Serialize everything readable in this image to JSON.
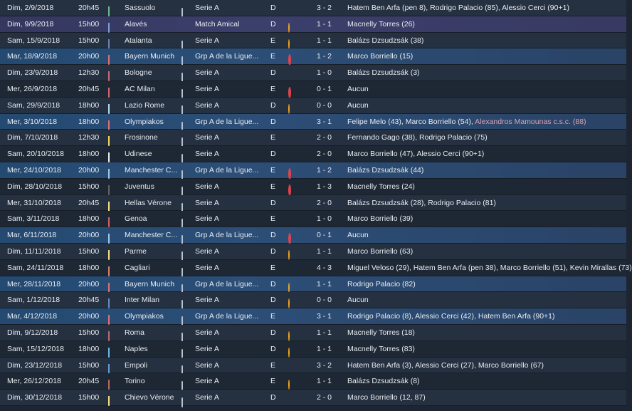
{
  "fixtures": [
    {
      "date": "Dim, 2/9/2018",
      "time": "20h45",
      "opponent": "Sassuolo",
      "crest_color": "#1d9a4d",
      "tv": true,
      "competition": "Serie A",
      "venue": "D",
      "result": "win",
      "score": "3 - 2",
      "scorers": "Hatem Ben Arfa (pen 8), Rodrigo Palacio (85), Alessio Cerci (90+1)",
      "scorers_extra": "",
      "style": "light"
    },
    {
      "date": "Dim, 9/9/2018",
      "time": "15h00",
      "opponent": "Alavés",
      "crest_color": "#2d6fbf",
      "tv": false,
      "competition": "Match Amical",
      "venue": "D",
      "result": "draw",
      "score": "1 - 1",
      "scorers": "Macnelly Torres (26)",
      "scorers_extra": "",
      "style": "amical"
    },
    {
      "date": "Sam, 15/9/2018",
      "time": "15h00",
      "opponent": "Atalanta",
      "crest_color": "#1f3f8a",
      "tv": true,
      "competition": "Serie A",
      "venue": "E",
      "result": "draw",
      "score": "1 - 1",
      "scorers": "Balázs Dzsudzsák (38)",
      "scorers_extra": "",
      "style": "light"
    },
    {
      "date": "Mar, 18/9/2018",
      "time": "20h00",
      "opponent": "Bayern Munich",
      "crest_color": "#d3212c",
      "tv": true,
      "competition": "Grp A de la Ligue...",
      "venue": "E",
      "result": "loss",
      "score": "1 - 2",
      "scorers": "Marco Borriello (15)",
      "scorers_extra": "",
      "style": "euro"
    },
    {
      "date": "Dim, 23/9/2018",
      "time": "12h30",
      "opponent": "Bologne",
      "crest_color": "#a8202c",
      "tv": true,
      "competition": "Serie A",
      "venue": "D",
      "result": "win",
      "score": "1 - 0",
      "scorers": "Balázs Dzsudzsák (3)",
      "scorers_extra": "",
      "style": "light"
    },
    {
      "date": "Mer, 26/9/2018",
      "time": "20h45",
      "opponent": "AC Milan",
      "crest_color": "#c4161c",
      "tv": true,
      "competition": "Serie A",
      "venue": "E",
      "result": "loss",
      "score": "0 - 1",
      "scorers": "Aucun",
      "scorers_extra": "",
      "style": "dark"
    },
    {
      "date": "Sam, 29/9/2018",
      "time": "18h00",
      "opponent": "Lazio Rome",
      "crest_color": "#8fc6ea",
      "tv": true,
      "competition": "Serie A",
      "venue": "D",
      "result": "draw",
      "score": "0 - 0",
      "scorers": "Aucun",
      "scorers_extra": "",
      "style": "light"
    },
    {
      "date": "Mer, 3/10/2018",
      "time": "18h00",
      "opponent": "Olympiakos",
      "crest_color": "#d3212c",
      "tv": true,
      "competition": "Grp A de la Ligue...",
      "venue": "D",
      "result": "win",
      "score": "3 - 1",
      "scorers": "Felipe Melo (43), Marco Borriello (54), ",
      "scorers_extra": "Alexandros Mamounas c.s.c. (88)",
      "style": "euro"
    },
    {
      "date": "Dim, 7/10/2018",
      "time": "12h30",
      "opponent": "Frosinone",
      "crest_color": "#f1c40f",
      "tv": true,
      "competition": "Serie A",
      "venue": "E",
      "result": "win",
      "score": "2 - 0",
      "scorers": "Fernando Gago (38), Rodrigo Palacio (75)",
      "scorers_extra": "",
      "style": "light"
    },
    {
      "date": "Sam, 20/10/2018",
      "time": "18h00",
      "opponent": "Udinese",
      "crest_color": "#e5e5e5",
      "tv": true,
      "competition": "Serie A",
      "venue": "D",
      "result": "win",
      "score": "2 - 0",
      "scorers": "Marco Borriello (47), Alessio Cerci (90+1)",
      "scorers_extra": "",
      "style": "dark"
    },
    {
      "date": "Mer, 24/10/2018",
      "time": "20h00",
      "opponent": "Manchester C...",
      "crest_color": "#6cabdd",
      "tv": true,
      "competition": "Grp A de la Ligue...",
      "venue": "E",
      "result": "loss",
      "score": "1 - 2",
      "scorers": "Balázs Dzsudzsák (44)",
      "scorers_extra": "",
      "style": "euro"
    },
    {
      "date": "Dim, 28/10/2018",
      "time": "15h00",
      "opponent": "Juventus",
      "crest_color": "#111111",
      "tv": true,
      "competition": "Serie A",
      "venue": "E",
      "result": "loss",
      "score": "1 - 3",
      "scorers": "Macnelly Torres (24)",
      "scorers_extra": "",
      "style": "dark"
    },
    {
      "date": "Mer, 31/10/2018",
      "time": "20h45",
      "opponent": "Hellas Vérone",
      "crest_color": "#f4d03f",
      "tv": true,
      "competition": "Serie A",
      "venue": "D",
      "result": "win",
      "score": "2 - 0",
      "scorers": "Balázs Dzsudzsák (28), Rodrigo Palacio (81)",
      "scorers_extra": "",
      "style": "light"
    },
    {
      "date": "Sam, 3/11/2018",
      "time": "18h00",
      "opponent": "Genoa",
      "crest_color": "#b5121b",
      "tv": true,
      "competition": "Serie A",
      "venue": "E",
      "result": "win",
      "score": "1 - 0",
      "scorers": "Marco Borriello (39)",
      "scorers_extra": "",
      "style": "dark"
    },
    {
      "date": "Mar, 6/11/2018",
      "time": "20h00",
      "opponent": "Manchester C...",
      "crest_color": "#6cabdd",
      "tv": true,
      "competition": "Grp A de la Ligue...",
      "venue": "D",
      "result": "loss",
      "score": "0 - 1",
      "scorers": "Aucun",
      "scorers_extra": "",
      "style": "euro"
    },
    {
      "date": "Dim, 11/11/2018",
      "time": "15h00",
      "opponent": "Parme",
      "crest_color": "#f4d03f",
      "tv": true,
      "competition": "Serie A",
      "venue": "D",
      "result": "draw",
      "score": "1 - 1",
      "scorers": "Marco Borriello (63)",
      "scorers_extra": "",
      "style": "light"
    },
    {
      "date": "Sam, 24/11/2018",
      "time": "18h00",
      "opponent": "Cagliari",
      "crest_color": "#c0392b",
      "tv": true,
      "competition": "Serie A",
      "venue": "E",
      "result": "win",
      "score": "4 - 3",
      "scorers": "Miguel Veloso (29), Hatem Ben Arfa (pen 38), Marco Borriello (51), Kevin Mirallas (73)",
      "scorers_extra": "",
      "style": "dark"
    },
    {
      "date": "Mer, 28/11/2018",
      "time": "20h00",
      "opponent": "Bayern Munich",
      "crest_color": "#d3212c",
      "tv": true,
      "competition": "Grp A de la Ligue...",
      "venue": "D",
      "result": "draw",
      "score": "1 - 1",
      "scorers": "Rodrigo Palacio (82)",
      "scorers_extra": "",
      "style": "euro"
    },
    {
      "date": "Sam, 1/12/2018",
      "time": "20h45",
      "opponent": "Inter Milan",
      "crest_color": "#1a4c9c",
      "tv": true,
      "competition": "Serie A",
      "venue": "D",
      "result": "draw",
      "score": "0 - 0",
      "scorers": "Aucun",
      "scorers_extra": "",
      "style": "light"
    },
    {
      "date": "Mar, 4/12/2018",
      "time": "20h00",
      "opponent": "Olympiakos",
      "crest_color": "#d3212c",
      "tv": true,
      "competition": "Grp A de la Ligue...",
      "venue": "E",
      "result": "win",
      "score": "3 - 1",
      "scorers": "Rodrigo Palacio (8), Alessio Cerci (42), Hatem Ben Arfa (90+1)",
      "scorers_extra": "",
      "style": "euro"
    },
    {
      "date": "Dim, 9/12/2018",
      "time": "15h00",
      "opponent": "Roma",
      "crest_color": "#8e1f2f",
      "tv": true,
      "competition": "Serie A",
      "venue": "D",
      "result": "draw",
      "score": "1 - 1",
      "scorers": "Macnelly Torres (18)",
      "scorers_extra": "",
      "style": "light"
    },
    {
      "date": "Sam, 15/12/2018",
      "time": "18h00",
      "opponent": "Naples",
      "crest_color": "#1e90d6",
      "tv": true,
      "competition": "Serie A",
      "venue": "D",
      "result": "draw",
      "score": "1 - 1",
      "scorers": "Macnelly Torres (83)",
      "scorers_extra": "",
      "style": "dark"
    },
    {
      "date": "Dim, 23/12/2018",
      "time": "15h00",
      "opponent": "Empoli",
      "crest_color": "#1565c0",
      "tv": true,
      "competition": "Serie A",
      "venue": "E",
      "result": "win",
      "score": "3 - 2",
      "scorers": "Hatem Ben Arfa (3), Alessio Cerci (27), Marco Borriello (67)",
      "scorers_extra": "",
      "style": "light"
    },
    {
      "date": "Mer, 26/12/2018",
      "time": "20h45",
      "opponent": "Torino",
      "crest_color": "#8b1a1a",
      "tv": true,
      "competition": "Serie A",
      "venue": "E",
      "result": "draw",
      "score": "1 - 1",
      "scorers": "Balázs Dzsudzsák (8)",
      "scorers_extra": "",
      "style": "dark"
    },
    {
      "date": "Dim, 30/12/2018",
      "time": "15h00",
      "opponent": "Chievo Vérone",
      "crest_color": "#f4d03f",
      "tv": true,
      "competition": "Serie A",
      "venue": "D",
      "result": "win",
      "score": "2 - 0",
      "scorers": "Marco Borriello (12, 87)",
      "scorers_extra": "",
      "style": "light"
    }
  ]
}
